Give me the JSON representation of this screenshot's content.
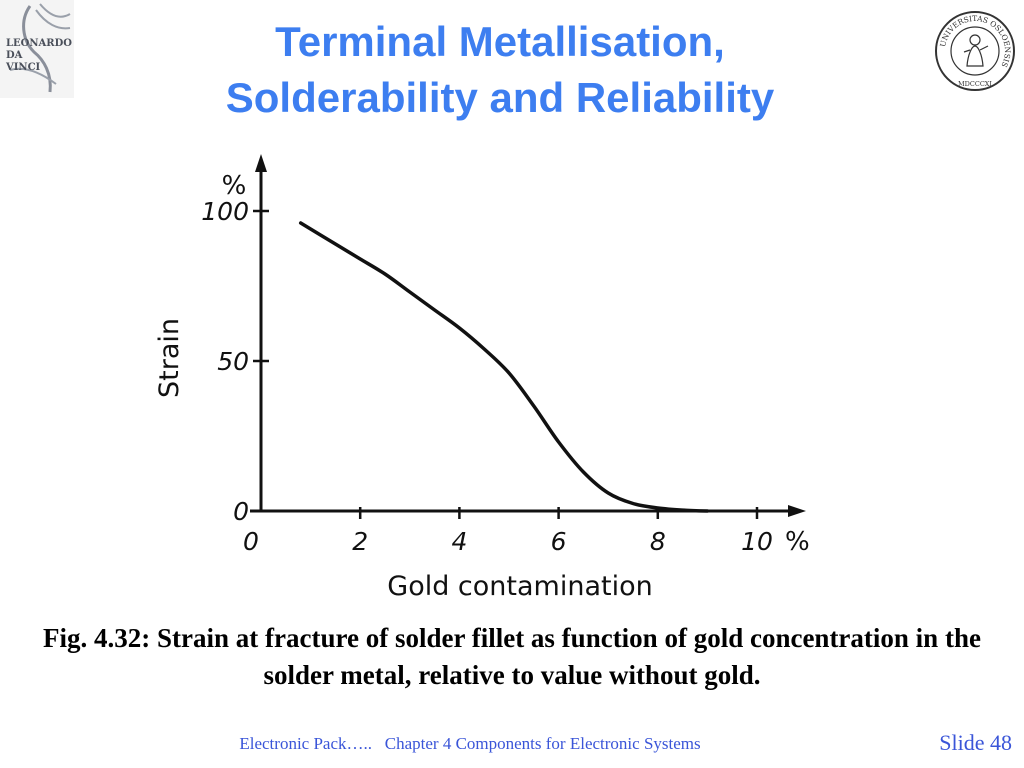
{
  "slide": {
    "title_line1": "Terminal Metallisation,",
    "title_line2": "Solderability and Reliability",
    "caption": "Fig. 4.32: Strain at fracture of solder fillet as function of gold concentration in the solder metal, relative to value without gold.",
    "footer_left": "Electronic Pack…..",
    "footer_center": "Chapter 4 Components for Electronic Systems",
    "slide_number": "Slide 48"
  },
  "logos": {
    "left": {
      "lines": [
        "LEONARDO",
        "DA",
        "VINCI"
      ],
      "icon": "leonardo-da-vinci-logo"
    },
    "right": {
      "text": "UNIVERSITAS OSLOENSIS",
      "year": "MDCCCXI",
      "icon": "university-seal"
    }
  },
  "colors": {
    "title": "#3d7ef0",
    "footer": "#3a55d8"
  },
  "chart_data": {
    "type": "line",
    "xlabel": "Gold contamination",
    "ylabel": "Strain",
    "x_unit": "%",
    "y_unit": "%",
    "xlim": [
      0,
      10
    ],
    "ylim": [
      0,
      100
    ],
    "x_ticks": [
      {
        "value": 0,
        "label": "0"
      },
      {
        "value": 2,
        "label": "2"
      },
      {
        "value": 4,
        "label": "4"
      },
      {
        "value": 6,
        "label": "6"
      },
      {
        "value": 8,
        "label": "8"
      },
      {
        "value": 10,
        "label": "10"
      }
    ],
    "y_ticks": [
      {
        "value": 0,
        "label": "0"
      },
      {
        "value": 50,
        "label": "50"
      },
      {
        "value": 100,
        "label": "100"
      }
    ],
    "grid": false,
    "series": [
      {
        "x": [
          0.8,
          1.5,
          2.0,
          2.5,
          3.0,
          3.5,
          4.0,
          4.5,
          5.0,
          5.5,
          6.0,
          6.5,
          7.0,
          7.5,
          8.0,
          8.5,
          9.0
        ],
        "y": [
          96,
          89,
          84,
          79,
          73,
          67,
          61,
          54,
          46,
          35,
          23,
          13,
          6,
          2.5,
          1,
          0.3,
          0
        ]
      }
    ]
  }
}
